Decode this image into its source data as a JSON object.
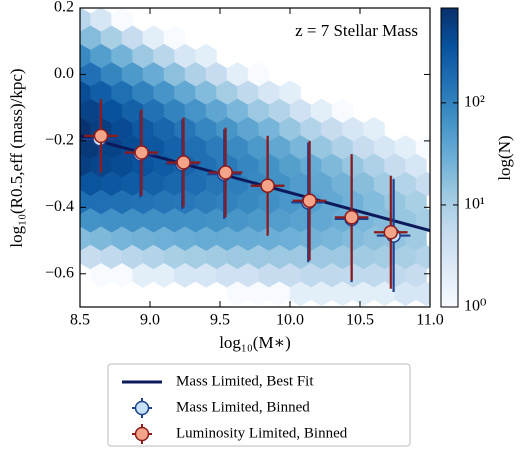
{
  "chart_data": {
    "type": "hexbin",
    "annotation": "z = 7 Stellar Mass",
    "xlabel": "log₁₀(M∗)",
    "ylabel": "log₁₀(R0.5,eff (mass)/kpc)",
    "xlim": [
      8.5,
      11.0
    ],
    "ylim": [
      -0.7,
      0.2
    ],
    "xticks": [
      8.5,
      {
        "value": 9,
        "label": "9.0"
      },
      9.5,
      {
        "value": 10,
        "label": "10.0"
      },
      10.5,
      {
        "value": 11,
        "label": "11.0"
      }
    ],
    "yticks": [
      {
        "value": -0.6,
        "label": "−0.6"
      },
      {
        "value": -0.4,
        "label": "−0.4"
      },
      {
        "value": -0.2,
        "label": "−0.2"
      },
      {
        "value": 0,
        "label": "0.0"
      },
      0.2
    ],
    "colormap": "Blues",
    "colorbar": {
      "label": "log(N)",
      "log": true,
      "lim": [
        1,
        850
      ],
      "ticks": [
        {
          "value": 1,
          "label": "10⁰"
        },
        {
          "value": 10,
          "label": "10¹"
        },
        {
          "value": 100,
          "label": "10²"
        }
      ]
    },
    "hexbin": {
      "width": 0.15,
      "rows": [
        {
          "y": 0.165,
          "x0": 8.5,
          "counts": [
            7,
            3,
            1
          ]
        },
        {
          "y": 0.11,
          "x0": 8.575,
          "counts": [
            19,
            10,
            5,
            2,
            1
          ]
        },
        {
          "y": 0.055,
          "x0": 8.5,
          "counts": [
            83,
            47,
            25,
            13,
            7,
            3,
            2
          ]
        },
        {
          "y": 0.0,
          "x0": 8.575,
          "counts": [
            160,
            94,
            55,
            31,
            17,
            9,
            5,
            2,
            1
          ]
        },
        {
          "y": -0.055,
          "x0": 8.5,
          "counts": [
            410,
            263,
            166,
            102,
            61,
            35,
            20,
            11,
            6,
            3,
            2
          ]
        },
        {
          "y": -0.11,
          "x0": 8.575,
          "counts": [
            525,
            363,
            240,
            158,
            100,
            63,
            38,
            23,
            13,
            8,
            4,
            2,
            1
          ]
        },
        {
          "y": -0.165,
          "x0": 8.5,
          "counts": [
            785,
            580,
            422,
            299,
            208,
            140,
            93,
            60,
            38,
            24,
            14,
            8,
            5,
            3,
            2
          ]
        },
        {
          "y": -0.22,
          "x0": 8.575,
          "counts": [
            676,
            537,
            417,
            314,
            231,
            166,
            118,
            81,
            55,
            36,
            23,
            14,
            9,
            5,
            3,
            2,
            1
          ]
        },
        {
          "y": -0.275,
          "x0": 8.5,
          "counts": [
            575,
            498,
            419,
            344,
            277,
            217,
            166,
            125,
            92,
            66,
            46,
            32,
            21,
            14,
            9,
            5,
            3
          ]
        },
        {
          "y": -0.33,
          "x0": 8.575,
          "counts": [
            339,
            309,
            276,
            242,
            207,
            173,
            141,
            112,
            88,
            67,
            50,
            36,
            26,
            18,
            12,
            8,
            5
          ]
        },
        {
          "y": -0.385,
          "x0": 8.5,
          "counts": [
            166,
            165,
            161,
            153,
            143,
            131,
            116,
            101,
            86,
            71,
            58,
            46,
            35,
            27,
            20,
            14,
            10
          ]
        },
        {
          "y": -0.44,
          "x0": 8.575,
          "counts": [
            65,
            69,
            72,
            72,
            72,
            69,
            66,
            60,
            55,
            48,
            42,
            35,
            29,
            23,
            19,
            14,
            11
          ]
        },
        {
          "y": -0.495,
          "x0": 8.5,
          "counts": [
            19,
            21,
            24,
            26,
            28,
            30,
            32,
            32,
            31,
            30,
            28,
            26,
            23,
            20,
            17,
            15,
            12
          ]
        },
        {
          "y": -0.55,
          "x0": 8.575,
          "counts": [
            5,
            6,
            7,
            8,
            10,
            11,
            12,
            13,
            13,
            13,
            13,
            13,
            13,
            12,
            11,
            10,
            8
          ]
        },
        {
          "y": -0.605,
          "x0": 8.65,
          "counts": [
            1,
            1,
            2,
            2,
            3,
            3,
            4,
            4,
            5,
            5,
            6,
            6,
            6,
            6,
            6,
            5
          ]
        },
        {
          "y": -0.66,
          "x0": 9.625,
          "counts": [
            1,
            1,
            1,
            2,
            2,
            2,
            2,
            2,
            3,
            3
          ]
        }
      ]
    },
    "series": [
      {
        "name": "Mass Limited, Best Fit",
        "type": "line",
        "color": "#0c1a5c",
        "x": [
          8.5,
          11.0
        ],
        "values": [
          -0.185,
          -0.47
        ]
      },
      {
        "name": "Mass Limited, Binned",
        "type": "errorbar",
        "color": "#1f3f8f",
        "fill": "#c6e0f5",
        "x": [
          8.64,
          8.93,
          9.23,
          9.53,
          9.84,
          10.13,
          10.44,
          10.74
        ],
        "values": [
          -0.195,
          -0.24,
          -0.27,
          -0.3,
          -0.335,
          -0.385,
          -0.435,
          -0.485
        ],
        "xerr": [
          0.12,
          0.12,
          0.12,
          0.12,
          0.12,
          0.12,
          0.12,
          0.12
        ],
        "yerr": [
          0.11,
          0.13,
          0.135,
          0.135,
          0.15,
          0.18,
          0.19,
          0.17
        ]
      },
      {
        "name": "Luminosity Limited, Binned",
        "type": "errorbar",
        "color": "#8e1b1b",
        "fill": "#f4a488",
        "x": [
          8.65,
          8.94,
          9.24,
          9.54,
          9.84,
          10.14,
          10.44,
          10.72
        ],
        "values": [
          -0.185,
          -0.235,
          -0.265,
          -0.295,
          -0.335,
          -0.38,
          -0.43,
          -0.475
        ],
        "xerr": [
          0.12,
          0.12,
          0.12,
          0.12,
          0.12,
          0.12,
          0.12,
          0.12
        ],
        "yerr": [
          0.11,
          0.13,
          0.135,
          0.135,
          0.15,
          0.18,
          0.19,
          0.17
        ]
      }
    ],
    "legend": "below"
  }
}
